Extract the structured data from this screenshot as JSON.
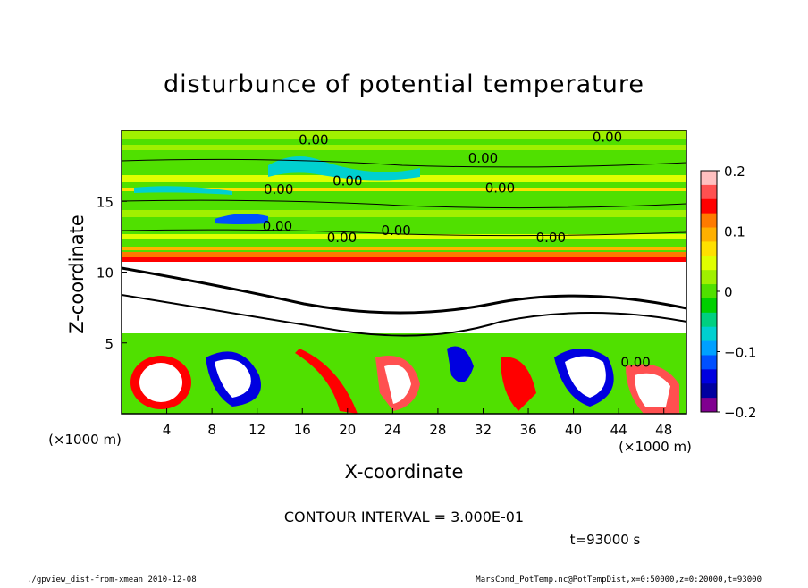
{
  "chart_data": {
    "type": "heatmap",
    "title": "disturbunce of potential temperature",
    "xlabel": "X-coordinate",
    "ylabel": "Z-coordinate",
    "x_unit": "(×1000 m)",
    "y_unit": "(×1000 m)",
    "xlim": [
      0,
      50
    ],
    "ylim": [
      0,
      20
    ],
    "x_ticks": [
      4,
      8,
      12,
      16,
      20,
      24,
      28,
      32,
      36,
      40,
      44,
      48
    ],
    "y_ticks": [
      5,
      10,
      15
    ],
    "colorbar": {
      "range": [
        -0.2,
        0.2
      ],
      "ticks": [
        0.2,
        0.1,
        0,
        -0.1,
        -0.2
      ],
      "tick_labels": [
        "0.2",
        "0.1",
        "0",
        "−0.1",
        "−0.2"
      ],
      "colors": [
        "#ffc0c0",
        "#ff5050",
        "#ff0000",
        "#ff7a00",
        "#ffb000",
        "#ffe000",
        "#e0ff00",
        "#a0f000",
        "#50e000",
        "#00d000",
        "#00d080",
        "#00d0d0",
        "#00a0ff",
        "#0050ff",
        "#0000e0",
        "#0000a0",
        "#800090"
      ]
    },
    "contour_labels": [
      {
        "text": "0.00",
        "x": 17.0,
        "z": 19.4
      },
      {
        "text": "0.00",
        "x": 32.0,
        "z": 18.1
      },
      {
        "text": "0.00",
        "x": 43.0,
        "z": 19.6
      },
      {
        "text": "0.00",
        "x": 20.0,
        "z": 16.5
      },
      {
        "text": "0.00",
        "x": 13.9,
        "z": 15.9
      },
      {
        "text": "0.00",
        "x": 33.5,
        "z": 16.0
      },
      {
        "text": "0.00",
        "x": 13.8,
        "z": 13.3
      },
      {
        "text": "0.00",
        "x": 19.5,
        "z": 12.5
      },
      {
        "text": "0.00",
        "x": 24.3,
        "z": 13.0
      },
      {
        "text": "0.00",
        "x": 38.0,
        "z": 12.5
      },
      {
        "text": "0.00",
        "x": 45.5,
        "z": 3.7
      }
    ],
    "contour_interval_text": "CONTOUR INTERVAL = 3.000E-01"
  },
  "time_label": "t=93000 s",
  "footer": {
    "left": "./gpview_dist-from-xmean   2010-12-08",
    "right": "MarsCond_PotTemp.nc@PotTempDist,x=0:50000,z=0:20000,t=93000"
  }
}
